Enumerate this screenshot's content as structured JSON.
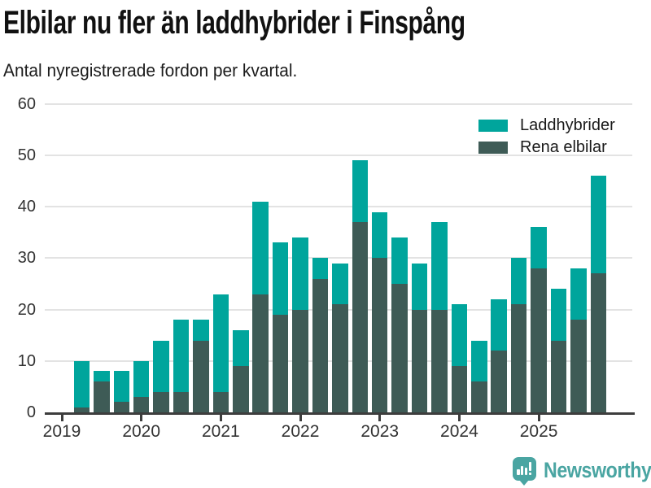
{
  "title": "Elbilar nu fler än laddhybrider i Finspång",
  "subtitle": "Antal nyregistrerade fordon per kvartal.",
  "legend": {
    "items": [
      {
        "label": "Laddhybrider",
        "color": "#00a59c",
        "icon": "teal-swatch"
      },
      {
        "label": "Rena elbilar",
        "color": "#3e5b56",
        "icon": "dark-swatch"
      }
    ]
  },
  "footer": {
    "brand": "Newsworthy",
    "logo_icon": "bar-chart-speech-bubble-icon",
    "brand_color": "#4aa5a2"
  },
  "colors": {
    "background": "#ffffff",
    "grid": "#e3e3e3",
    "axis": "#3d3d3d",
    "axis_text": "#333333",
    "text": "#1a1a1a"
  },
  "chart_data": {
    "type": "bar",
    "stacked": true,
    "title": "Elbilar nu fler än laddhybrider i Finspång",
    "subtitle": "Antal nyregistrerade fordon per kvartal.",
    "xlabel": "",
    "ylabel": "",
    "ylim": [
      0,
      60
    ],
    "y_ticks": [
      0,
      10,
      20,
      30,
      40,
      50,
      60
    ],
    "grid": "horizontal",
    "legend_position": "top-right",
    "x_axis": {
      "first_year": 2019,
      "tick_labels": [
        "2019",
        "2020",
        "2021",
        "2022",
        "2023",
        "2024",
        "2025"
      ]
    },
    "x": [
      "2019-Q2",
      "2019-Q3",
      "2019-Q4",
      "2020-Q1",
      "2020-Q2",
      "2020-Q3",
      "2020-Q4",
      "2021-Q1",
      "2021-Q2",
      "2021-Q3",
      "2021-Q4",
      "2022-Q1",
      "2022-Q2",
      "2022-Q3",
      "2022-Q4",
      "2023-Q1",
      "2023-Q2",
      "2023-Q3",
      "2023-Q4",
      "2024-Q1",
      "2024-Q2",
      "2024-Q3",
      "2024-Q4",
      "2025-Q1",
      "2025-Q2",
      "2025-Q3",
      "2025-Q4"
    ],
    "series": [
      {
        "name": "Rena elbilar",
        "color": "#3e5b56",
        "stack_order": "bottom",
        "values": [
          1,
          6,
          2,
          3,
          4,
          4,
          14,
          4,
          9,
          23,
          19,
          20,
          26,
          21,
          37,
          30,
          25,
          20,
          20,
          9,
          6,
          12,
          21,
          28,
          14,
          18,
          27
        ]
      },
      {
        "name": "Laddhybrider",
        "color": "#00a59c",
        "stack_order": "top",
        "values": [
          9,
          2,
          6,
          7,
          10,
          14,
          4,
          19,
          7,
          18,
          14,
          14,
          4,
          8,
          12,
          9,
          9,
          9,
          17,
          12,
          8,
          10,
          9,
          8,
          10,
          10,
          19
        ]
      }
    ],
    "stacked_totals": [
      10,
      8,
      8,
      10,
      14,
      18,
      18,
      23,
      16,
      41,
      33,
      34,
      30,
      29,
      49,
      39,
      34,
      29,
      37,
      21,
      14,
      22,
      30,
      36,
      24,
      28,
      46
    ]
  }
}
